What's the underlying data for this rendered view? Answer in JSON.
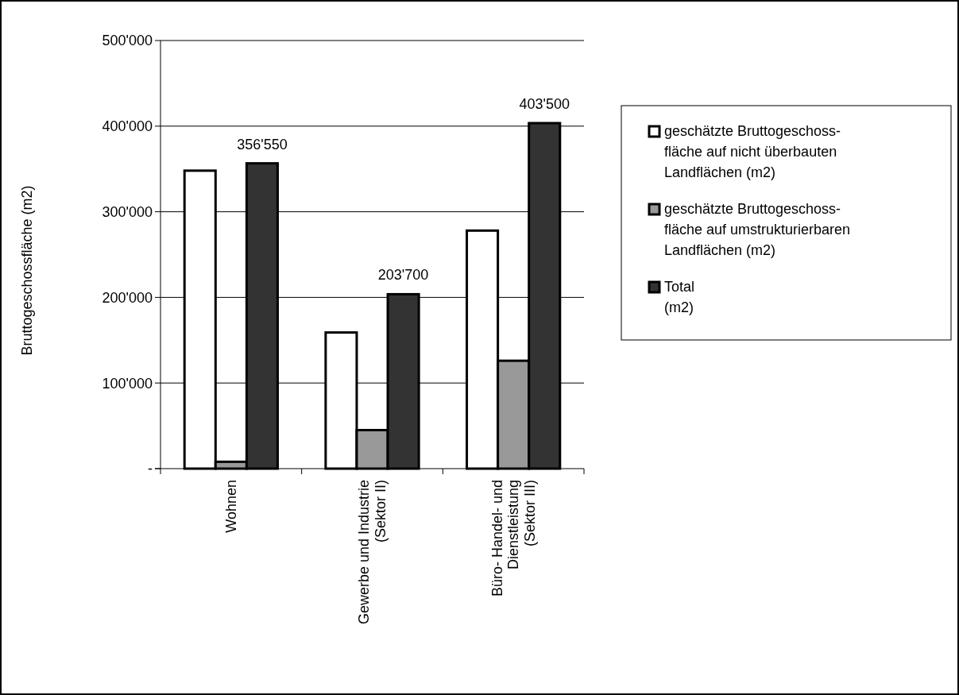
{
  "chart_data": {
    "type": "bar",
    "ylabel": "Bruttogeschossfläche (m2)",
    "categories": [
      "Wohnen",
      "Gewerbe und  Industrie\n(Sektor II)",
      "Büro- Handel- und\nDienstleistung\n(Sektor III)"
    ],
    "series": [
      {
        "name": "geschätzte Bruttogeschoss-\nfläche auf nicht überbauten\nLandflächen (m2)",
        "color": "#ffffff",
        "values": [
          348000,
          159000,
          278000
        ]
      },
      {
        "name": "geschätzte Bruttogeschoss-\nfläche auf umstrukturierbaren\nLandflächen (m2)",
        "color": "#999999",
        "values": [
          8000,
          45000,
          126000
        ]
      },
      {
        "name": "Total\n(m2)",
        "color": "#333333",
        "values": [
          356550,
          203700,
          403500
        ],
        "value_labels": [
          "356'550",
          "203'700",
          "403'500"
        ]
      }
    ],
    "ylim": [
      0,
      500000
    ],
    "yticks": [
      {
        "value": 0,
        "label": "-"
      },
      {
        "value": 100000,
        "label": "100'000"
      },
      {
        "value": 200000,
        "label": "200'000"
      },
      {
        "value": 300000,
        "label": "300'000"
      },
      {
        "value": 400000,
        "label": "400'000"
      },
      {
        "value": 500000,
        "label": "500'000"
      }
    ],
    "grid": "y",
    "legend": "right"
  }
}
